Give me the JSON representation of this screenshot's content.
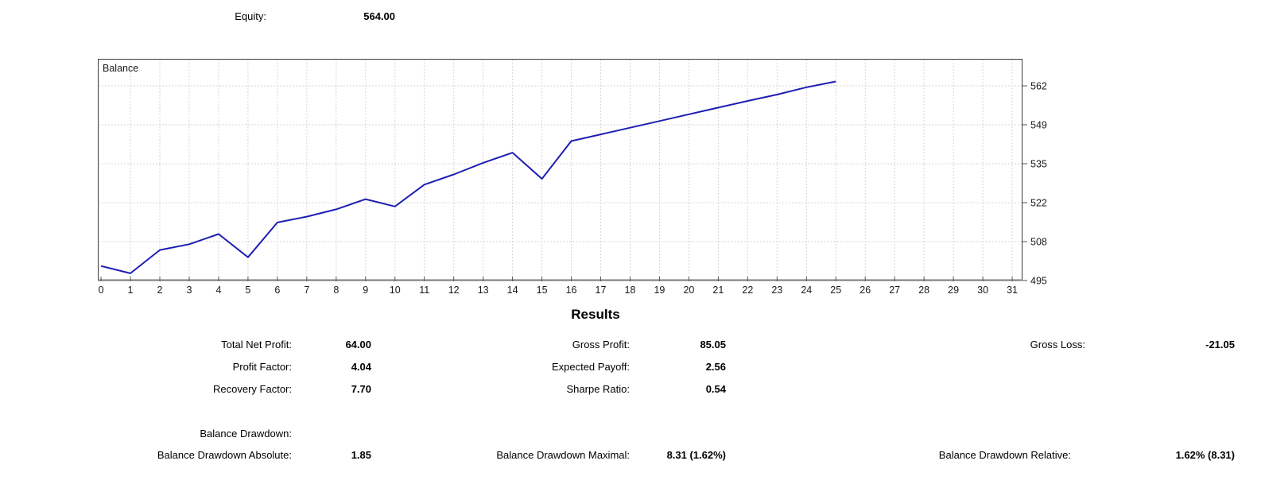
{
  "equity": {
    "label": "Equity:",
    "value": "564.00"
  },
  "chart_data": {
    "type": "line",
    "title": "Balance",
    "series": [
      {
        "name": "Balance",
        "x": [
          0,
          1,
          2,
          3,
          4,
          5,
          6,
          7,
          8,
          9,
          10,
          11,
          12,
          13,
          14,
          15,
          16,
          17,
          18,
          19,
          20,
          21,
          22,
          23,
          24,
          25
        ],
        "values": [
          500,
          497.5,
          505.5,
          507.5,
          511,
          503,
          515,
          517,
          519.5,
          523,
          520.5,
          528,
          531.5,
          535.5,
          539,
          530,
          543,
          545.3,
          547.6,
          549.9,
          552.2,
          554.5,
          556.8,
          559,
          561.5,
          563.5
        ]
      }
    ],
    "x_tick_labels": [
      "0",
      "1",
      "2",
      "3",
      "4",
      "5",
      "6",
      "7",
      "8",
      "9",
      "10",
      "11",
      "12",
      "13",
      "14",
      "15",
      "16",
      "17",
      "18",
      "19",
      "20",
      "21",
      "22",
      "23",
      "24",
      "25",
      "26",
      "27",
      "28",
      "29",
      "30",
      "31"
    ],
    "y_ticks": [
      {
        "label": "495",
        "value": 495
      },
      {
        "label": "508",
        "value": 508.4
      },
      {
        "label": "522",
        "value": 521.8
      },
      {
        "label": "535",
        "value": 535.2
      },
      {
        "label": "549",
        "value": 548.6
      },
      {
        "label": "562",
        "value": 562
      }
    ],
    "xlim": [
      -0.11,
      31.35
    ],
    "ylim": [
      495,
      571.3
    ],
    "grid": true,
    "legend_position": "top-left-inside",
    "line_color": "#1e1eb4",
    "grid_color": "#d6d6d6",
    "axis_color": "#3c3c3c",
    "tick_label_color": "#1a1a1a"
  },
  "results": {
    "heading": "Results",
    "total_net_profit": {
      "label": "Total Net Profit:",
      "value": "64.00"
    },
    "gross_profit": {
      "label": "Gross Profit:",
      "value": "85.05"
    },
    "gross_loss": {
      "label": "Gross Loss:",
      "value": "-21.05"
    },
    "profit_factor": {
      "label": "Profit Factor:",
      "value": "4.04"
    },
    "expected_payoff": {
      "label": "Expected Payoff:",
      "value": "2.56"
    },
    "recovery_factor": {
      "label": "Recovery Factor:",
      "value": "7.70"
    },
    "sharpe_ratio": {
      "label": "Sharpe Ratio:",
      "value": "0.54"
    },
    "balance_drawdown": {
      "label": "Balance Drawdown:"
    },
    "bd_absolute": {
      "label": "Balance Drawdown Absolute:",
      "value": "1.85"
    },
    "bd_maximal": {
      "label": "Balance Drawdown Maximal:",
      "value": "8.31 (1.62%)"
    },
    "bd_relative": {
      "label": "Balance Drawdown Relative:",
      "value": "1.62% (8.31)"
    }
  }
}
